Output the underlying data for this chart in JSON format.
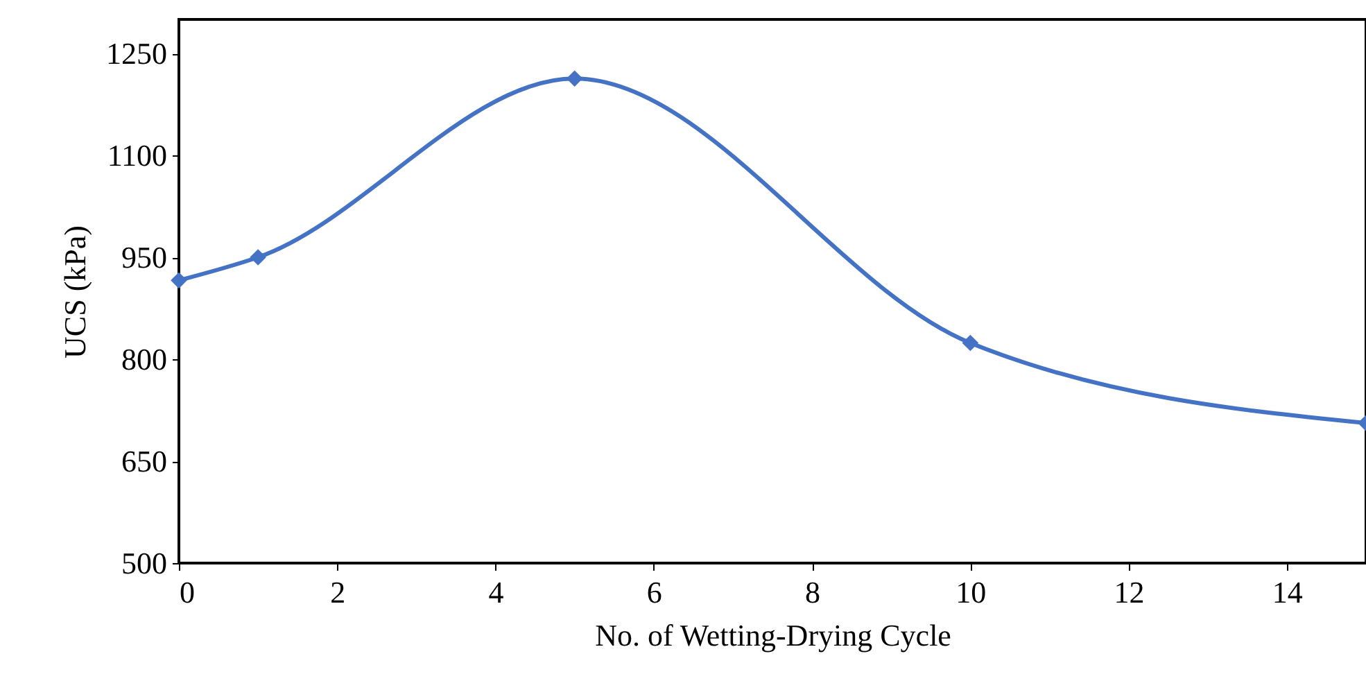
{
  "chart_data": {
    "type": "line",
    "xlabel": "No. of Wetting-Drying Cycle",
    "ylabel": "UCS (kPa)",
    "x": [
      0,
      1,
      5,
      10,
      15
    ],
    "series": [
      {
        "color": "#4472c4",
        "values": [
          916,
          950,
          1213,
          824,
          706
        ]
      }
    ],
    "xlim": [
      0,
      15
    ],
    "ylim": [
      500,
      1300
    ],
    "xticks": [
      0,
      2,
      4,
      6,
      8,
      10,
      12,
      14
    ],
    "yticks": [
      500,
      650,
      800,
      950,
      1100,
      1250
    ],
    "marker": "diamond",
    "grid": false
  }
}
